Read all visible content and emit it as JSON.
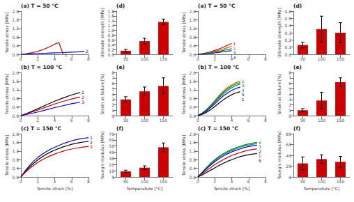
{
  "chart_data": [
    {
      "type": "line",
      "title": "(a) T = 50 °C",
      "ylabel": "Tensile stress [MPa]",
      "xlim": [
        0,
        8
      ],
      "xticks": [
        0,
        2,
        4,
        6,
        8
      ],
      "ylim": [
        0,
        2
      ],
      "yticks": [
        {
          "value": 0,
          "label": "0.0"
        },
        0.4,
        0.8,
        1.2,
        1.6,
        {
          "value": 2,
          "label": "2.0"
        }
      ],
      "grid": false,
      "series": [
        {
          "name": "1",
          "color": "#cc0000",
          "x": [
            0,
            0.5,
            1,
            1.5,
            2,
            2.5,
            3,
            3.5,
            4,
            4.5,
            5
          ],
          "values": [
            0,
            0.02,
            0.05,
            0.09,
            0.14,
            0.2,
            0.28,
            0.37,
            0.47,
            0.55,
            0.0
          ]
        },
        {
          "name": "2",
          "color": "#0000cc",
          "x": [
            0,
            1,
            2,
            3,
            4,
            5,
            6,
            7,
            7.5
          ],
          "values": [
            0,
            0.02,
            0.04,
            0.05,
            0.07,
            0.08,
            0.1,
            0.12,
            0.13
          ]
        }
      ]
    },
    {
      "type": "line",
      "title": "(b) T = 100 °C",
      "ylabel": "Tensile stress [MPa]",
      "xlim": [
        0,
        8
      ],
      "xticks": [
        0,
        2,
        4,
        6,
        8
      ],
      "ylim": [
        0,
        2
      ],
      "yticks": [
        {
          "value": 0,
          "label": "0.0"
        },
        0.4,
        0.8,
        1.2,
        1.6,
        {
          "value": 2,
          "label": "2.0"
        }
      ],
      "grid": false,
      "series": [
        {
          "name": "1",
          "color": "#000000",
          "x": [
            0,
            1,
            2,
            3,
            4,
            5,
            6,
            7
          ],
          "values": [
            0,
            0.15,
            0.32,
            0.5,
            0.67,
            0.82,
            0.96,
            1.07
          ]
        },
        {
          "name": "2",
          "color": "#cc0000",
          "x": [
            0,
            1,
            2,
            3,
            4,
            5,
            6,
            7
          ],
          "values": [
            0,
            0.12,
            0.26,
            0.4,
            0.54,
            0.66,
            0.77,
            0.86
          ]
        },
        {
          "name": "3",
          "color": "#0000cc",
          "x": [
            0,
            1,
            2,
            3,
            4,
            5,
            6,
            7
          ],
          "values": [
            0,
            0.08,
            0.17,
            0.27,
            0.37,
            0.46,
            0.55,
            0.62
          ]
        }
      ]
    },
    {
      "type": "line",
      "title": "(c) T = 150 °C",
      "ylabel": "Tensile stress [MPa]",
      "xlabel": "Tensile strain [%]",
      "xlim": [
        0,
        8
      ],
      "xticks": [
        0,
        2,
        4,
        6,
        8
      ],
      "ylim": [
        0,
        2
      ],
      "yticks": [
        {
          "value": 0,
          "label": "0.0"
        },
        0.4,
        0.8,
        1.2,
        1.6,
        {
          "value": 2,
          "label": "2.0"
        }
      ],
      "grid": false,
      "series": [
        {
          "name": "1",
          "color": "#0000cc",
          "x": [
            0,
            0.5,
            1,
            1.5,
            2,
            2.5,
            3,
            3.5,
            4,
            4.5,
            5,
            5.5,
            6,
            6.5,
            7,
            7.5,
            8
          ],
          "values": [
            0,
            0.28,
            0.52,
            0.73,
            0.9,
            1.05,
            1.17,
            1.28,
            1.37,
            1.46,
            1.54,
            1.61,
            1.67,
            1.72,
            1.76,
            1.79,
            1.82
          ]
        },
        {
          "name": "2",
          "color": "#000000",
          "x": [
            0,
            0.5,
            1,
            1.5,
            2,
            2.5,
            3,
            3.5,
            4,
            4.5,
            5,
            5.5,
            6,
            6.5,
            7,
            7.5,
            8
          ],
          "values": [
            0,
            0.24,
            0.45,
            0.63,
            0.79,
            0.93,
            1.05,
            1.15,
            1.24,
            1.32,
            1.39,
            1.45,
            1.51,
            1.55,
            1.59,
            1.62,
            1.65
          ]
        },
        {
          "name": "3",
          "color": "#cc0000",
          "x": [
            0,
            0.5,
            1,
            1.5,
            2,
            2.5,
            3,
            3.5,
            4,
            4.5,
            5,
            5.5,
            6,
            6.5,
            7,
            7.5,
            8
          ],
          "values": [
            0,
            0.2,
            0.38,
            0.53,
            0.67,
            0.79,
            0.89,
            0.98,
            1.06,
            1.13,
            1.19,
            1.25,
            1.29,
            1.33,
            1.36,
            1.39,
            1.41
          ]
        }
      ]
    },
    {
      "type": "bar",
      "title": "(d)",
      "ylabel": "Ultimate strength [MPa]",
      "categories": [
        "50",
        "100",
        "150"
      ],
      "values": [
        0.15,
        0.55,
        1.35
      ],
      "errors": [
        0.06,
        0.12,
        0.12
      ],
      "color": "#cc0000",
      "ylim": [
        0,
        1.8
      ],
      "yticks": [
        {
          "value": 0,
          "label": "0.0"
        },
        0.2,
        0.4,
        0.6,
        0.8,
        {
          "value": 1,
          "label": "1.0"
        },
        1.2,
        1.4,
        1.6,
        1.8
      ],
      "grid": false
    },
    {
      "type": "bar",
      "title": "(e)",
      "ylabel": "Strain at failure [%]",
      "categories": [
        "50",
        "100",
        "150"
      ],
      "values": [
        3.0,
        4.5,
        5.5
      ],
      "errors": [
        0.5,
        0.8,
        1.5
      ],
      "color": "#cc0000",
      "ylim": [
        0,
        8
      ],
      "yticks": [
        0,
        1,
        2,
        3,
        4,
        5,
        6,
        7,
        8
      ],
      "grid": false
    },
    {
      "type": "bar",
      "title": "(f)",
      "ylabel": "Young's modulus [MPa]",
      "xlabel": "Temperature [°C]",
      "categories": [
        "50",
        "100",
        "150"
      ],
      "values": [
        9,
        15,
        48
      ],
      "errors": [
        2,
        3,
        7
      ],
      "color": "#cc0000",
      "ylim": [
        0,
        70
      ],
      "yticks": [
        0,
        10,
        20,
        30,
        40,
        50,
        60,
        70
      ],
      "grid": false
    },
    {
      "type": "line",
      "title": "(a) T = 50 °C",
      "ylabel": "Tensile stress [MPa]",
      "xlim": [
        0,
        8
      ],
      "xticks": [
        0,
        2,
        4,
        6,
        8
      ],
      "ylim": [
        0,
        2
      ],
      "yticks": [
        {
          "value": 0,
          "label": "0.0"
        },
        0.4,
        0.8,
        1.2,
        1.6,
        {
          "value": 2,
          "label": "2.0"
        }
      ],
      "grid": false,
      "series": [
        {
          "name": "1",
          "color": "#cc0000",
          "x": [
            0,
            0.5,
            1,
            1.5,
            2,
            2.5,
            3,
            3.5,
            4
          ],
          "values": [
            0,
            0.03,
            0.07,
            0.12,
            0.18,
            0.25,
            0.33,
            0.42,
            0.5
          ]
        },
        {
          "name": "2",
          "color": "#cc6600",
          "x": [
            0,
            0.5,
            1,
            1.5,
            2,
            2.5,
            3,
            3.5,
            4
          ],
          "values": [
            0,
            0.025,
            0.055,
            0.095,
            0.14,
            0.19,
            0.25,
            0.31,
            0.37
          ]
        },
        {
          "name": "3",
          "color": "#008800",
          "x": [
            0,
            0.5,
            1,
            1.5,
            2,
            2.5,
            3,
            3.5,
            4
          ],
          "values": [
            0,
            0.018,
            0.04,
            0.068,
            0.1,
            0.135,
            0.18,
            0.22,
            0.26
          ]
        },
        {
          "name": "4",
          "color": "#0000cc",
          "x": [
            0,
            0.5,
            1,
            1.5,
            2,
            2.5,
            3,
            3.5,
            4
          ],
          "values": [
            0,
            0.01,
            0.025,
            0.042,
            0.065,
            0.09,
            0.12,
            0.15,
            0.17
          ]
        }
      ]
    },
    {
      "type": "line",
      "title": "(b) T = 100 °C",
      "ylabel": "Tensile stress [MPa]",
      "xlim": [
        0,
        8
      ],
      "xticks": [
        0,
        2,
        4,
        6,
        8
      ],
      "ylim": [
        0,
        2
      ],
      "yticks": [
        {
          "value": 0,
          "label": "0.0"
        },
        0.4,
        0.8,
        1.2,
        1.6,
        {
          "value": 2,
          "label": "2.0"
        }
      ],
      "grid": false,
      "series": [
        {
          "name": "2",
          "color": "#cc6600",
          "x": [
            0,
            0.5,
            1,
            1.5,
            2,
            2.5,
            3,
            3.5,
            4,
            4.5,
            5
          ],
          "values": [
            0,
            0.12,
            0.28,
            0.48,
            0.7,
            0.93,
            1.13,
            1.3,
            1.43,
            1.53,
            1.6
          ]
        },
        {
          "name": "3",
          "color": "#008800",
          "x": [
            0,
            0.5,
            1,
            1.5,
            2,
            2.5,
            3,
            3.5,
            4,
            4.5,
            5
          ],
          "values": [
            0,
            0.11,
            0.26,
            0.45,
            0.66,
            0.88,
            1.07,
            1.23,
            1.36,
            1.46,
            1.53
          ]
        },
        {
          "name": "4",
          "color": "#008888",
          "x": [
            0,
            0.5,
            1,
            1.5,
            2,
            2.5,
            3,
            3.5,
            4,
            4.5,
            5
          ],
          "values": [
            0,
            0.1,
            0.24,
            0.42,
            0.62,
            0.83,
            1.01,
            1.16,
            1.29,
            1.39,
            1.46
          ]
        },
        {
          "name": "5",
          "color": "#0000cc",
          "x": [
            0,
            0.5,
            1,
            1.5,
            2,
            2.5,
            3,
            3.5,
            4,
            4.5,
            5
          ],
          "values": [
            0,
            0.09,
            0.21,
            0.37,
            0.55,
            0.74,
            0.91,
            1.05,
            1.17,
            1.26,
            1.32
          ]
        },
        {
          "name": "1",
          "color": "#000000",
          "x": [
            0,
            0.5,
            1,
            1.5,
            2,
            2.5,
            3,
            3.5,
            4,
            4.5,
            5
          ],
          "values": [
            0,
            0.06,
            0.15,
            0.27,
            0.42,
            0.58,
            0.73,
            0.86,
            0.97,
            1.05,
            1.11
          ]
        }
      ]
    },
    {
      "type": "line",
      "title": "(c) T = 150 °C",
      "ylabel": "Tensile stress [MPa]",
      "xlabel": "Tensile strain [%]",
      "xlim": [
        0,
        8
      ],
      "xticks": [
        0,
        2,
        4,
        6,
        8
      ],
      "ylim": [
        0,
        2
      ],
      "yticks": [
        {
          "value": 0,
          "label": "0.0"
        },
        0.4,
        0.8,
        1.2,
        1.6,
        {
          "value": 2,
          "label": "2.0"
        }
      ],
      "grid": false,
      "series": [
        {
          "name": "4",
          "color": "#008800",
          "x": [
            0,
            0.5,
            1,
            1.5,
            2,
            2.5,
            3,
            3.5,
            4,
            4.5,
            5,
            5.5,
            6,
            6.5,
            7
          ],
          "values": [
            0,
            0.22,
            0.43,
            0.63,
            0.8,
            0.95,
            1.07,
            1.18,
            1.27,
            1.35,
            1.42,
            1.48,
            1.53,
            1.57,
            1.6
          ]
        },
        {
          "name": "3",
          "color": "#008888",
          "x": [
            0,
            0.5,
            1,
            1.5,
            2,
            2.5,
            3,
            3.5,
            4,
            4.5,
            5,
            5.5,
            6,
            6.5,
            7
          ],
          "values": [
            0,
            0.2,
            0.4,
            0.59,
            0.76,
            0.91,
            1.03,
            1.13,
            1.22,
            1.3,
            1.37,
            1.43,
            1.47,
            1.51,
            1.54
          ]
        },
        {
          "name": "2",
          "color": "#0000cc",
          "x": [
            0,
            0.5,
            1,
            1.5,
            2,
            2.5,
            3,
            3.5,
            4,
            4.5,
            5,
            5.5,
            6,
            6.5,
            7
          ],
          "values": [
            0,
            0.18,
            0.37,
            0.55,
            0.71,
            0.85,
            0.97,
            1.07,
            1.16,
            1.23,
            1.3,
            1.36,
            1.41,
            1.44,
            1.47
          ]
        },
        {
          "name": "1",
          "color": "#cc0000",
          "x": [
            0,
            0.5,
            1,
            1.5,
            2,
            2.5,
            3,
            3.5,
            4,
            4.5,
            5,
            5.5,
            6,
            6.5,
            7
          ],
          "values": [
            0,
            0.14,
            0.29,
            0.43,
            0.57,
            0.69,
            0.8,
            0.9,
            0.99,
            1.06,
            1.13,
            1.19,
            1.24,
            1.27,
            1.3
          ]
        },
        {
          "name": "5",
          "color": "#000000",
          "x": [
            0,
            0.5,
            1,
            1.5,
            2,
            2.5,
            3,
            3.5,
            4,
            4.5,
            5,
            5.5,
            6,
            6.5,
            7
          ],
          "values": [
            0,
            0.09,
            0.2,
            0.31,
            0.42,
            0.53,
            0.63,
            0.72,
            0.8,
            0.87,
            0.94,
            0.99,
            1.03,
            1.06,
            1.08
          ]
        }
      ]
    },
    {
      "type": "bar",
      "title": "(d)",
      "ylabel": "Ultimate strength [MPa]",
      "categories": [
        "50",
        "100",
        "150"
      ],
      "values": [
        0.13,
        0.35,
        0.3
      ],
      "errors": [
        0.04,
        0.18,
        0.14
      ],
      "color": "#cc0000",
      "ylim": [
        0,
        0.6
      ],
      "yticks": [
        {
          "value": 0,
          "label": "0.0"
        },
        0.1,
        0.2,
        0.3,
        0.4,
        0.5,
        0.6
      ],
      "grid": false
    },
    {
      "type": "bar",
      "title": "(e)",
      "ylabel": "Strain at failure [%]",
      "categories": [
        "50",
        "100",
        "150"
      ],
      "values": [
        1.0,
        2.8,
        6.2
      ],
      "errors": [
        0.3,
        1.5,
        0.8
      ],
      "color": "#cc0000",
      "ylim": [
        0,
        8
      ],
      "yticks": [
        0,
        1,
        2,
        3,
        4,
        5,
        6,
        7,
        8
      ],
      "grid": false
    },
    {
      "type": "bar",
      "title": "(f)",
      "ylabel": "Young's modulus [MPa]",
      "xlabel": "Temperature [°C]",
      "categories": [
        "50",
        "100",
        "150"
      ],
      "values": [
        25,
        33,
        28
      ],
      "errors": [
        12,
        8,
        10
      ],
      "color": "#cc0000",
      "ylim": [
        0,
        80
      ],
      "yticks": [
        0,
        20,
        40,
        60,
        80
      ],
      "grid": false
    }
  ]
}
